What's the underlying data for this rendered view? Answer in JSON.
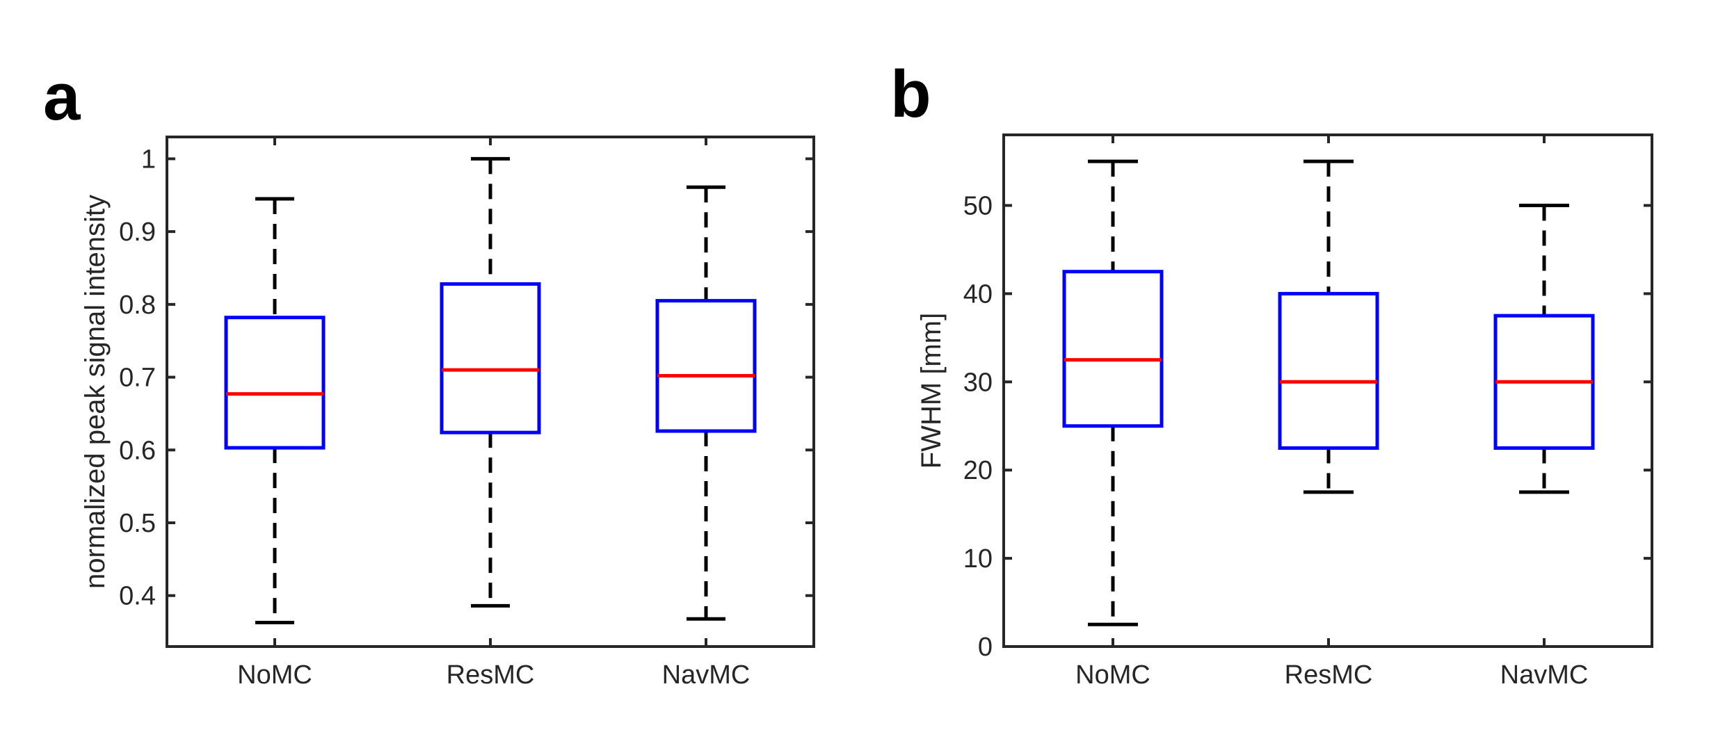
{
  "chart_data": [
    {
      "type": "boxplot",
      "panel_label": "a",
      "title": "",
      "xlabel": "",
      "ylabel": "normalized peak signal intensity",
      "ylim": [
        0.33,
        1.03
      ],
      "yticks": [
        0.4,
        0.5,
        0.6,
        0.7,
        0.8,
        0.9,
        1
      ],
      "ytick_labels": [
        "0.4",
        "0.5",
        "0.6",
        "0.7",
        "0.8",
        "0.9",
        "1"
      ],
      "categories": [
        "NoMC",
        "ResMC",
        "NavMC"
      ],
      "boxes": [
        {
          "name": "NoMC",
          "whisker_low": 0.363,
          "q1": 0.603,
          "median": 0.677,
          "q3": 0.782,
          "whisker_high": 0.945
        },
        {
          "name": "ResMC",
          "whisker_low": 0.386,
          "q1": 0.624,
          "median": 0.71,
          "q3": 0.828,
          "whisker_high": 1.0
        },
        {
          "name": "NavMC",
          "whisker_low": 0.368,
          "q1": 0.626,
          "median": 0.702,
          "q3": 0.805,
          "whisker_high": 0.961
        }
      ],
      "colors": {
        "box": "#0000ff",
        "median": "#ff0000",
        "whisker": "#000000",
        "axis": "#262626"
      }
    },
    {
      "type": "boxplot",
      "panel_label": "b",
      "title": "",
      "xlabel": "",
      "ylabel": "FWHM [mm]",
      "ylim": [
        0,
        58
      ],
      "yticks": [
        0,
        10,
        20,
        30,
        40,
        50
      ],
      "ytick_labels": [
        "0",
        "10",
        "20",
        "30",
        "40",
        "50"
      ],
      "categories": [
        "NoMC",
        "ResMC",
        "NavMC"
      ],
      "boxes": [
        {
          "name": "NoMC",
          "whisker_low": 2.5,
          "q1": 25.0,
          "median": 32.5,
          "q3": 42.5,
          "whisker_high": 55.0
        },
        {
          "name": "ResMC",
          "whisker_low": 17.5,
          "q1": 22.5,
          "median": 30.0,
          "q3": 40.0,
          "whisker_high": 55.0
        },
        {
          "name": "NavMC",
          "whisker_low": 17.5,
          "q1": 22.5,
          "median": 30.0,
          "q3": 37.5,
          "whisker_high": 50.0
        }
      ],
      "colors": {
        "box": "#0000ff",
        "median": "#ff0000",
        "whisker": "#000000",
        "axis": "#262626"
      }
    }
  ]
}
